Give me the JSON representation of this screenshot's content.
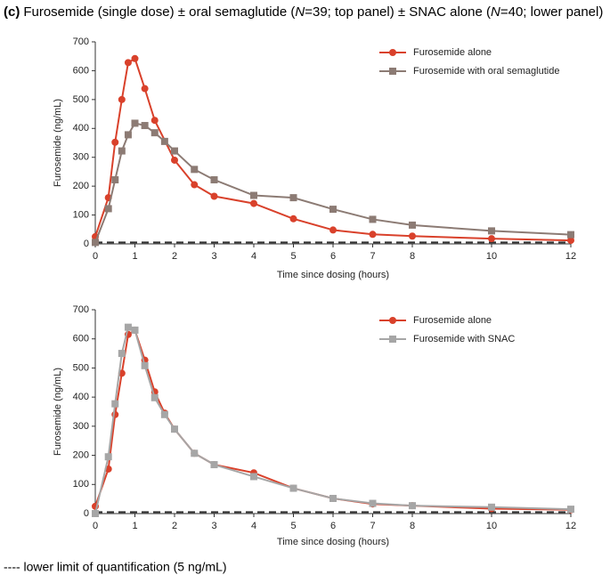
{
  "title": [
    "(c)",
    "Furosemide (single dose) ± oral semaglutide (",
    "N",
    "=39; top panel) ± SNAC alone (",
    "N",
    "=40; lower panel)"
  ],
  "chart_data": [
    {
      "type": "line",
      "xlabel": "Time since dosing (hours)",
      "ylabel": "Furosemide (ng/mL)",
      "xlim": [
        0,
        12
      ],
      "xticks": [
        0,
        1,
        2,
        3,
        4,
        5,
        6,
        7,
        8,
        10,
        12
      ],
      "ylim": [
        0,
        700
      ],
      "yticks": [
        0,
        100,
        200,
        300,
        400,
        500,
        600,
        700
      ],
      "reference_line": 5,
      "legend": "upper right",
      "series": [
        {
          "name": "Furosemide alone",
          "color": "#d9412b",
          "marker": "circle",
          "x": [
            0,
            0.33,
            0.5,
            0.67,
            0.83,
            1,
            1.25,
            1.5,
            2,
            2.5,
            3,
            4,
            5,
            6,
            7,
            8,
            10,
            12
          ],
          "values": [
            25,
            160,
            352,
            500,
            628,
            642,
            538,
            428,
            290,
            205,
            165,
            140,
            87,
            48,
            33,
            27,
            18,
            12
          ]
        },
        {
          "name": "Furosemide with oral semaglutide",
          "color": "#8c7b74",
          "marker": "square",
          "x": [
            0,
            0.33,
            0.5,
            0.67,
            0.83,
            1,
            1.25,
            1.5,
            1.75,
            2,
            2.5,
            3,
            4,
            5,
            6,
            7,
            8,
            10,
            12
          ],
          "values": [
            5,
            122,
            222,
            322,
            378,
            418,
            410,
            385,
            355,
            322,
            258,
            222,
            168,
            160,
            120,
            85,
            65,
            45,
            32
          ]
        }
      ]
    },
    {
      "type": "line",
      "xlabel": "Time since dosing (hours)",
      "ylabel": "Furosemide (ng/mL)",
      "xlim": [
        0,
        12
      ],
      "xticks": [
        0,
        1,
        2,
        3,
        4,
        5,
        6,
        7,
        8,
        10,
        12
      ],
      "ylim": [
        0,
        700
      ],
      "yticks": [
        0,
        100,
        200,
        300,
        400,
        500,
        600,
        700
      ],
      "reference_line": 5,
      "legend": "upper right",
      "series": [
        {
          "name": "Furosemide alone",
          "color": "#d9412b",
          "marker": "circle",
          "x": [
            0,
            0.33,
            0.5,
            0.67,
            0.83,
            1,
            1.25,
            1.5,
            1.75,
            2,
            2.5,
            3,
            4,
            5,
            6,
            7,
            8,
            10,
            12
          ],
          "values": [
            25,
            153,
            340,
            482,
            615,
            630,
            527,
            418,
            345,
            290,
            207,
            168,
            140,
            87,
            52,
            33,
            27,
            17,
            13
          ]
        },
        {
          "name": "Furosemide with SNAC",
          "color": "#a6a6a6",
          "marker": "square",
          "x": [
            0,
            0.33,
            0.5,
            0.67,
            0.83,
            1,
            1.25,
            1.5,
            1.75,
            2,
            2.5,
            3,
            4,
            5,
            6,
            7,
            8,
            10,
            12
          ],
          "values": [
            0,
            195,
            377,
            550,
            640,
            630,
            508,
            398,
            340,
            290,
            207,
            168,
            127,
            87,
            52,
            35,
            27,
            22,
            15
          ]
        }
      ]
    }
  ],
  "footnote": "---- lower limit of quantification (5 ng/mL)"
}
